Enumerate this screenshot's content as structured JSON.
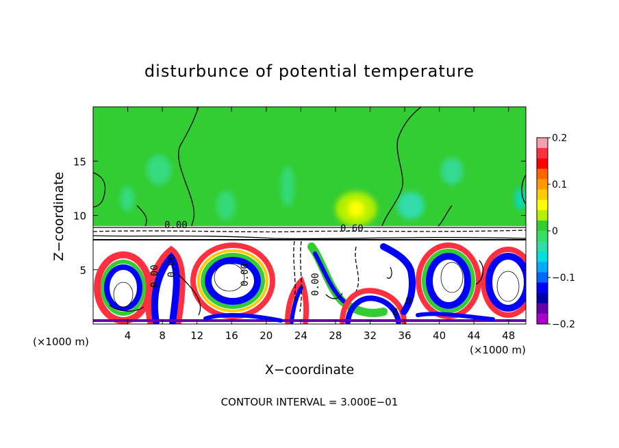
{
  "chart_data": {
    "type": "heatmap",
    "title": "disturbunce of potential temperature",
    "xlabel": "X−coordinate",
    "ylabel": "Z−coordinate",
    "x_unit_left": "(×1000 m)",
    "x_unit_right": "(×1000 m)",
    "xlim": [
      0,
      50
    ],
    "ylim": [
      0,
      20
    ],
    "x_ticks": [
      4,
      8,
      12,
      16,
      20,
      24,
      28,
      32,
      36,
      40,
      44,
      48
    ],
    "x_tick_labels": [
      "4",
      "8",
      "12",
      "16",
      "20",
      "24",
      "28",
      "32",
      "36",
      "40",
      "44",
      "48"
    ],
    "y_ticks": [
      5,
      10,
      15
    ],
    "y_tick_labels": [
      "5",
      "10",
      "15"
    ],
    "contour_labels": [
      "0.00",
      "0.00",
      "0.00",
      "0.00",
      "0.00",
      "0.60",
      "0",
      "0"
    ],
    "colorbar": {
      "range": [
        -0.2,
        0.2
      ],
      "tick_values": [
        0.2,
        0.1,
        0,
        -0.1,
        -0.2
      ],
      "tick_labels": [
        "0.2",
        "0.1",
        "0",
        "−0.1",
        "−0.2"
      ],
      "colors": [
        "#f4a0b0",
        "#ff3040",
        "#ff0000",
        "#ff6600",
        "#ff9900",
        "#ffcc00",
        "#ffff00",
        "#b4f000",
        "#33cc33",
        "#33dd66",
        "#33ddaa",
        "#00dddd",
        "#00aaff",
        "#0066ff",
        "#0000ff",
        "#0000aa",
        "#6600aa",
        "#aa00cc"
      ]
    },
    "footer": "CONTOUR INTERVAL = 3.000E−01"
  }
}
